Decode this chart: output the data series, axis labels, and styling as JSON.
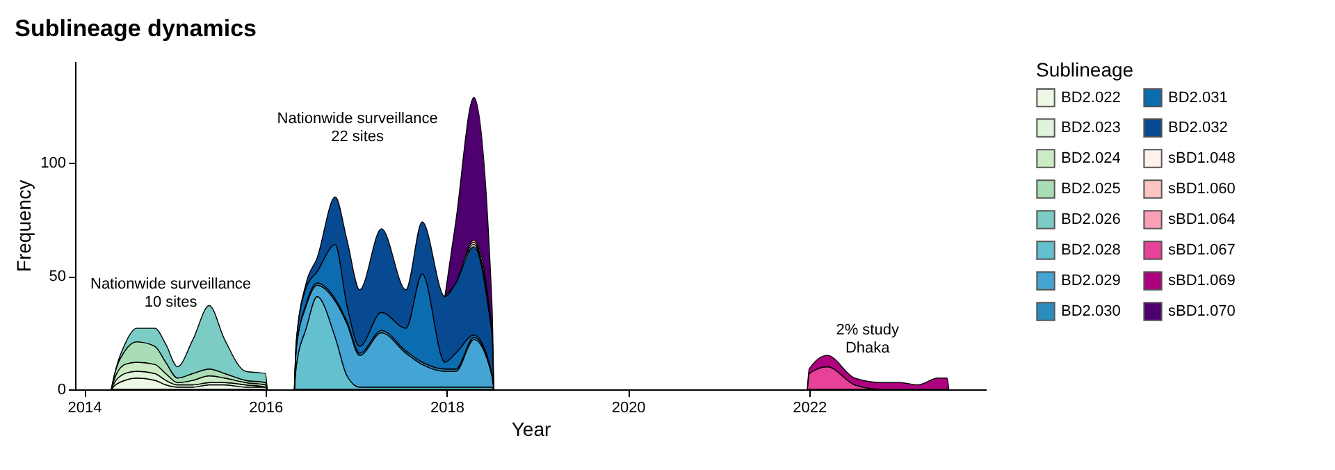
{
  "chart_data": {
    "type": "area",
    "stacked": true,
    "title": "Sublineage dynamics",
    "xlabel": "Year",
    "ylabel": "Frequency",
    "legend_title": "Sublineage",
    "legend": "right",
    "xlim": [
      2013.9,
      2023.95
    ],
    "xticks": [
      2014,
      2016,
      2018,
      2020,
      2022
    ],
    "ylim": [
      0,
      145
    ],
    "yticks": [
      0,
      50,
      100
    ],
    "x": [
      2014.3,
      2014.32,
      2014.45,
      2014.58,
      2014.78,
      2014.9,
      2015.03,
      2015.2,
      2015.38,
      2015.55,
      2015.78,
      2016.0,
      2016.02,
      2016.32,
      2016.34,
      2016.45,
      2016.57,
      2016.77,
      2016.9,
      2017.04,
      2017.28,
      2017.55,
      2017.73,
      2017.98,
      2018.1,
      2018.3,
      2018.5,
      2018.52,
      2021.98,
      2022.0,
      2022.2,
      2022.5,
      2022.8,
      2023.0,
      2023.2,
      2023.42,
      2023.52,
      2023.54
    ],
    "series": [
      {
        "name": "BD2.022",
        "color": "#edf8e6",
        "values": [
          0,
          1,
          4,
          5,
          4,
          2,
          1,
          1,
          2,
          2,
          1,
          1,
          0,
          null,
          null,
          null,
          null,
          null,
          null,
          null,
          null,
          null,
          null,
          null,
          null,
          null,
          null,
          null,
          null,
          null,
          null,
          null,
          null,
          null,
          null,
          null,
          null,
          null
        ]
      },
      {
        "name": "BD2.023",
        "color": "#e0f3db",
        "values": [
          0,
          1,
          3,
          3,
          3,
          2,
          1,
          1,
          1,
          1,
          1,
          0,
          0,
          null,
          null,
          null,
          null,
          null,
          null,
          null,
          null,
          null,
          null,
          null,
          null,
          null,
          null,
          null,
          null,
          null,
          null,
          null,
          null,
          null,
          null,
          null,
          null,
          null
        ]
      },
      {
        "name": "BD2.024",
        "color": "#ccebc5",
        "values": [
          0,
          1,
          4,
          4,
          4,
          3,
          1,
          2,
          3,
          2,
          1,
          1,
          0,
          null,
          null,
          null,
          null,
          null,
          null,
          null,
          null,
          null,
          null,
          null,
          null,
          null,
          null,
          null,
          null,
          null,
          null,
          null,
          null,
          null,
          null,
          null,
          null,
          null
        ]
      },
      {
        "name": "BD2.025",
        "color": "#a8ddb5",
        "values": [
          0,
          1,
          6,
          9,
          8,
          5,
          2,
          3,
          3,
          2,
          1,
          1,
          0,
          null,
          null,
          null,
          null,
          null,
          null,
          null,
          null,
          null,
          null,
          null,
          null,
          null,
          null,
          null,
          null,
          null,
          null,
          null,
          null,
          null,
          null,
          null,
          null,
          null
        ]
      },
      {
        "name": "BD2.026",
        "color": "#7bccc4",
        "values": [
          0,
          0,
          3,
          6,
          8,
          8,
          5,
          15,
          28,
          15,
          4,
          4,
          0,
          null,
          null,
          null,
          null,
          null,
          null,
          null,
          null,
          null,
          null,
          null,
          null,
          null,
          null,
          null,
          null,
          null,
          null,
          null,
          null,
          null,
          null,
          null,
          null,
          null
        ]
      },
      {
        "name": "BD2.028",
        "color": "#62c0cf",
        "values": [
          null,
          null,
          null,
          null,
          null,
          null,
          null,
          null,
          null,
          null,
          null,
          null,
          null,
          0,
          10,
          27,
          41,
          23,
          6,
          1,
          1,
          1,
          1,
          1,
          1,
          1,
          1,
          0,
          null,
          null,
          null,
          null,
          null,
          null,
          null,
          null,
          null,
          null
        ]
      },
      {
        "name": "BD2.029",
        "color": "#44a5d4",
        "values": [
          null,
          null,
          null,
          null,
          null,
          null,
          null,
          null,
          null,
          null,
          null,
          null,
          null,
          0,
          8,
          10,
          5,
          16,
          23,
          14,
          24,
          15,
          10,
          7,
          7,
          21,
          5,
          0,
          null,
          null,
          null,
          null,
          null,
          null,
          null,
          null,
          null,
          null
        ]
      },
      {
        "name": "BD2.030",
        "color": "#2b8cbe",
        "values": [
          null,
          null,
          null,
          null,
          null,
          null,
          null,
          null,
          null,
          null,
          null,
          null,
          null,
          0,
          0,
          1,
          1,
          1,
          1,
          1,
          1,
          1,
          1,
          1,
          1,
          1,
          0,
          0,
          null,
          null,
          null,
          null,
          null,
          null,
          null,
          null,
          null,
          null
        ]
      },
      {
        "name": "BD2.031",
        "color": "#0b6cb0",
        "values": [
          null,
          null,
          null,
          null,
          null,
          null,
          null,
          null,
          null,
          null,
          null,
          null,
          null,
          0,
          3,
          7,
          5,
          24,
          7,
          3,
          8,
          10,
          39,
          3,
          7,
          1,
          1,
          0,
          null,
          null,
          null,
          null,
          null,
          null,
          null,
          null,
          null,
          null
        ]
      },
      {
        "name": "BD2.032",
        "color": "#084a91",
        "values": [
          null,
          null,
          null,
          null,
          null,
          null,
          null,
          null,
          null,
          null,
          null,
          null,
          null,
          0,
          0,
          2,
          6,
          21,
          29,
          25,
          37,
          17,
          23,
          29,
          31,
          39,
          18,
          0,
          null,
          null,
          null,
          null,
          null,
          null,
          null,
          null,
          null,
          null
        ]
      },
      {
        "name": "sBD1.048",
        "color": "#fff0ee",
        "values": [
          null,
          null,
          null,
          null,
          null,
          null,
          null,
          null,
          null,
          null,
          null,
          null,
          null,
          null,
          null,
          null,
          null,
          null,
          null,
          null,
          null,
          null,
          null,
          null,
          0,
          1,
          0,
          null,
          null,
          null,
          null,
          null,
          null,
          null,
          null,
          null,
          null,
          null
        ]
      },
      {
        "name": "sBD1.060",
        "color": "#fcc5c0",
        "values": [
          null,
          null,
          null,
          null,
          null,
          null,
          null,
          null,
          null,
          null,
          null,
          null,
          null,
          null,
          null,
          null,
          null,
          null,
          null,
          null,
          null,
          null,
          null,
          null,
          0,
          1,
          0,
          null,
          null,
          null,
          null,
          null,
          null,
          null,
          null,
          null,
          null,
          null
        ]
      },
      {
        "name": "sBD1.064",
        "color": "#fa9fb5",
        "values": [
          null,
          null,
          null,
          null,
          null,
          null,
          null,
          null,
          null,
          null,
          null,
          null,
          null,
          null,
          null,
          null,
          null,
          null,
          null,
          null,
          null,
          null,
          null,
          null,
          0,
          1,
          0,
          null,
          null,
          null,
          null,
          null,
          null,
          null,
          null,
          null,
          null,
          null
        ]
      },
      {
        "name": "sBD1.067",
        "color": "#e7419a",
        "values": [
          null,
          null,
          null,
          null,
          null,
          null,
          null,
          null,
          null,
          null,
          null,
          null,
          null,
          null,
          null,
          null,
          null,
          null,
          null,
          null,
          null,
          null,
          null,
          null,
          null,
          null,
          null,
          null,
          0,
          7,
          10,
          2,
          0,
          0,
          0,
          0,
          0,
          0
        ]
      },
      {
        "name": "sBD1.069",
        "color": "#ae017e",
        "values": [
          null,
          null,
          null,
          null,
          null,
          null,
          null,
          null,
          null,
          null,
          null,
          null,
          null,
          null,
          null,
          null,
          null,
          null,
          null,
          null,
          null,
          null,
          null,
          null,
          null,
          null,
          null,
          null,
          0,
          2,
          5,
          3,
          3,
          3,
          2,
          5,
          5,
          0
        ]
      },
      {
        "name": "sBD1.070",
        "color": "#4d006e",
        "values": [
          null,
          null,
          null,
          null,
          null,
          null,
          null,
          null,
          null,
          null,
          null,
          null,
          null,
          null,
          null,
          null,
          null,
          null,
          null,
          null,
          null,
          null,
          null,
          0,
          27,
          63,
          12,
          0,
          null,
          null,
          null,
          null,
          null,
          null,
          null,
          null,
          null,
          null
        ]
      }
    ],
    "annotations": [
      "Nationwide surveillance\n10 sites",
      "Nationwide surveillance\n22 sites",
      "2% study\nDhaka"
    ]
  }
}
